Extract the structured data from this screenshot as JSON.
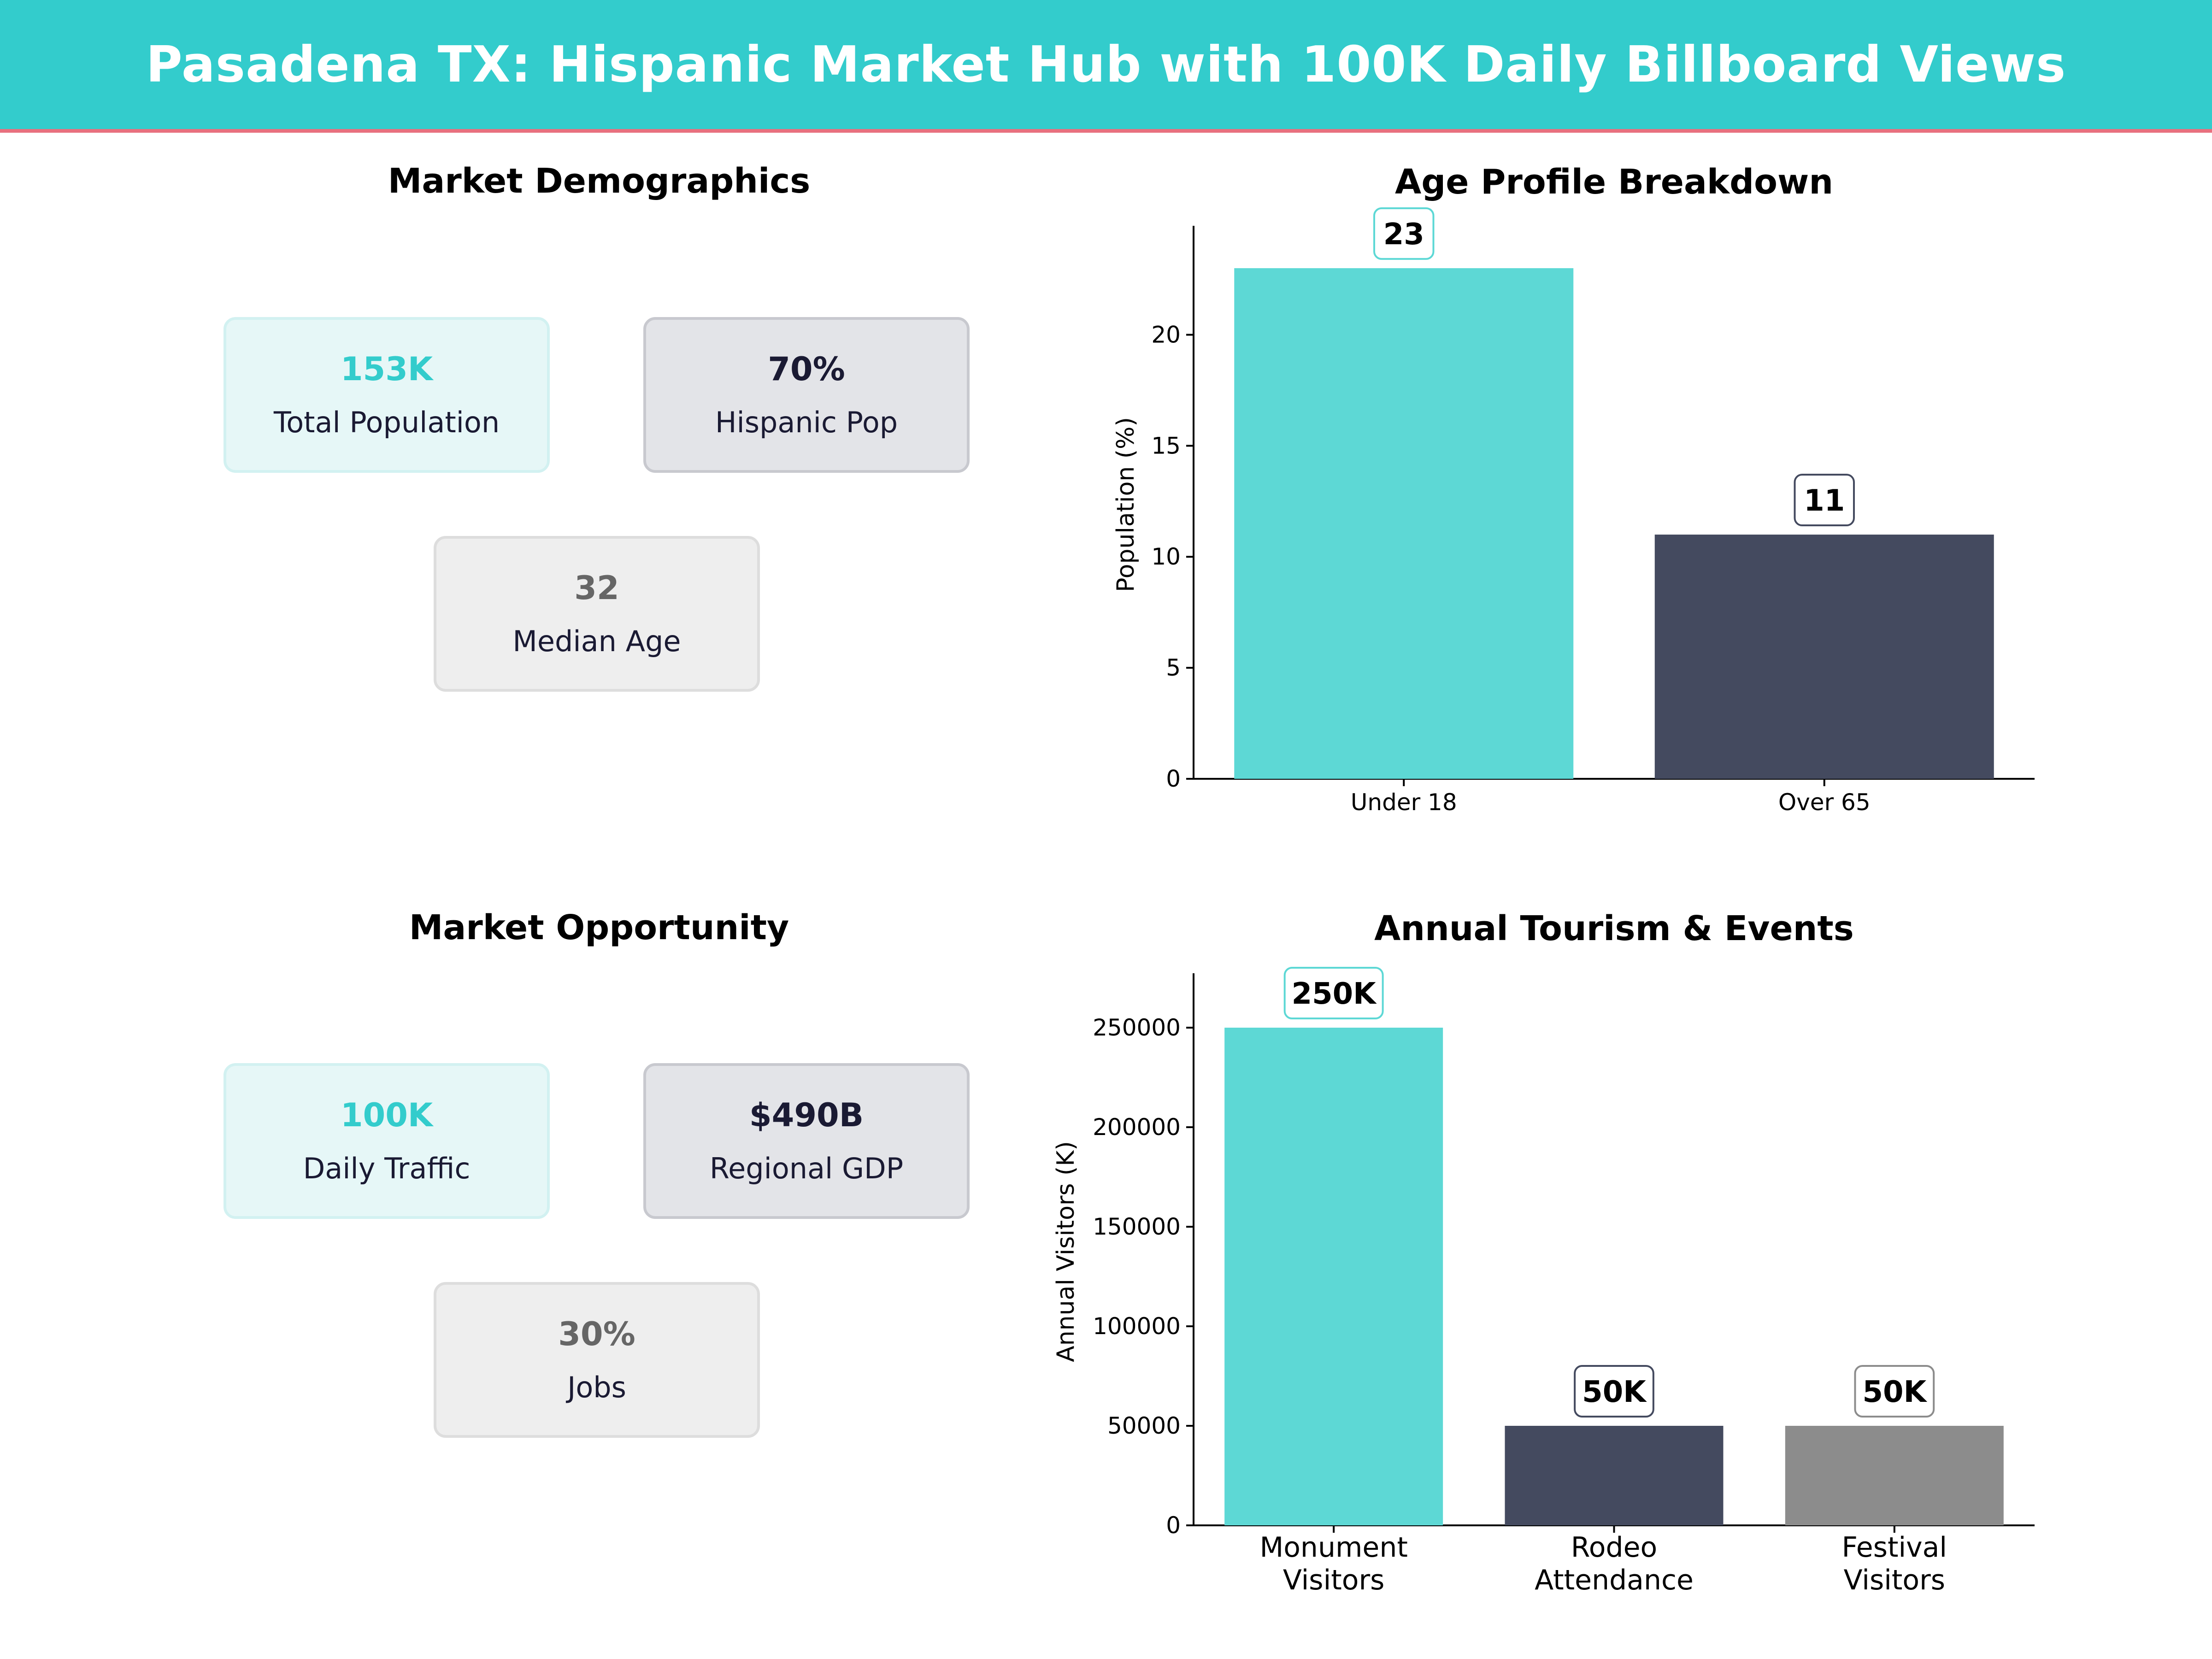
{
  "header": {
    "title": "Pasadena TX: Hispanic Market Hub with 100K Daily Billboard Views"
  },
  "demographics": {
    "title": "Market Demographics",
    "cards": [
      {
        "value": "153K",
        "label": "Total Population"
      },
      {
        "value": "70%",
        "label": "Hispanic Pop"
      },
      {
        "value": "32",
        "label": "Median Age"
      }
    ]
  },
  "opportunity": {
    "title": "Market Opportunity",
    "cards": [
      {
        "value": "100K",
        "label": "Daily Traffic"
      },
      {
        "value": "$490B",
        "label": "Regional GDP"
      },
      {
        "value": "30%",
        "label": "Jobs"
      }
    ]
  },
  "colors": {
    "teal": "#5dd8d5",
    "navy": "#444a5f",
    "gray": "#8c8c8c",
    "accent": "#33cccc"
  },
  "chart_data": [
    {
      "type": "bar",
      "title": "Age Profile Breakdown",
      "ylabel": "Population (%)",
      "xlabel": "",
      "categories": [
        "Under 18",
        "Over 65"
      ],
      "values": [
        23,
        11
      ],
      "data_labels": [
        "23",
        "11"
      ],
      "colors": [
        "#5dd8d5",
        "#444a5f"
      ],
      "ylim": [
        0,
        24.7
      ],
      "yticks": [
        0,
        5,
        10,
        15,
        20
      ],
      "grid": false,
      "legend": "none"
    },
    {
      "type": "bar",
      "title": "Annual Tourism & Events",
      "ylabel": "Annual Visitors (K)",
      "xlabel": "",
      "categories": [
        "Monument\nVisitors",
        "Rodeo\nAttendance",
        "Festival\nVisitors"
      ],
      "values": [
        250000,
        50000,
        50000
      ],
      "data_labels": [
        "250K",
        "50K",
        "50K"
      ],
      "colors": [
        "#5dd8d5",
        "#444a5f",
        "#8c8c8c"
      ],
      "ylim": [
        0,
        275000
      ],
      "yticks": [
        0,
        50000,
        100000,
        150000,
        200000,
        250000
      ],
      "grid": false,
      "legend": "none"
    }
  ]
}
